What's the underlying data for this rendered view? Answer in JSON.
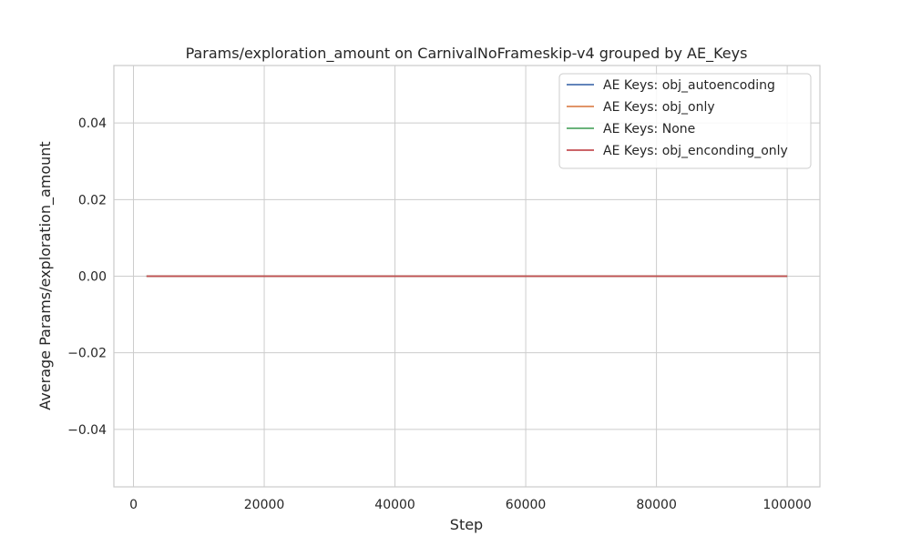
{
  "chart_data": {
    "type": "line",
    "title": "Params/exploration_amount on CarnivalNoFrameskip-v4 grouped by AE_Keys",
    "xlabel": "Step",
    "ylabel": "Average Params/exploration_amount",
    "xlim": [
      -3000,
      105000
    ],
    "ylim": [
      -0.055,
      0.055
    ],
    "xticks": [
      0,
      20000,
      40000,
      60000,
      80000,
      100000
    ],
    "xtick_labels": [
      "0",
      "20000",
      "40000",
      "60000",
      "80000",
      "100000"
    ],
    "yticks": [
      -0.04,
      -0.02,
      0.0,
      0.02,
      0.04
    ],
    "ytick_labels": [
      "−0.04",
      "−0.02",
      "0.00",
      "0.02",
      "0.04"
    ],
    "grid": true,
    "legend_position": "top-right",
    "series": [
      {
        "name": "AE Keys: obj_autoencoding",
        "color": "#4c72b0",
        "x": [
          2000,
          100000
        ],
        "y": [
          0,
          0
        ]
      },
      {
        "name": "AE Keys: obj_only",
        "color": "#dd8452",
        "x": [
          2000,
          100000
        ],
        "y": [
          0,
          0
        ]
      },
      {
        "name": "AE Keys: None",
        "color": "#55a868",
        "x": [
          2000,
          100000
        ],
        "y": [
          0,
          0
        ]
      },
      {
        "name": "AE Keys: obj_enconding_only",
        "color": "#c44e52",
        "x": [
          2000,
          100000
        ],
        "y": [
          0,
          0
        ]
      }
    ]
  }
}
